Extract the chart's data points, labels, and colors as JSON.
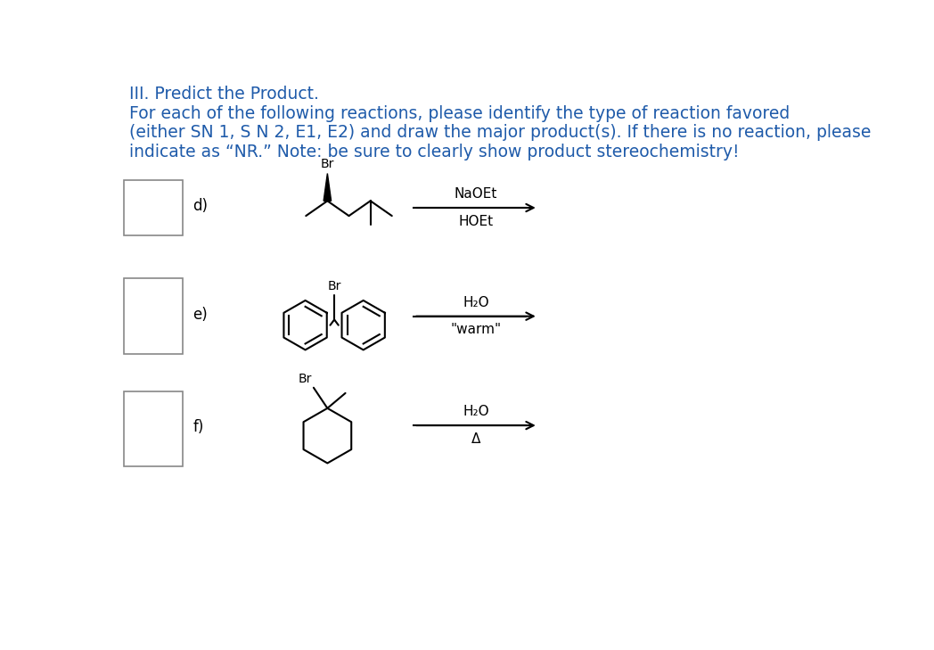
{
  "title_line1": "III. Predict the Product.",
  "title_line2": "For each of the following reactions, please identify the type of reaction favored",
  "title_line3": "(either SN 1, S N 2, E1, E2) and draw the major product(s). If there is no reaction, please",
  "title_line4": "indicate as “NR.” Note: be sure to clearly show product stereochemistry!",
  "title_color": "#1f5baa",
  "title_fontsize": 13.5,
  "background_color": "#ffffff",
  "label_d": "d)",
  "label_e": "e)",
  "label_f": "f)",
  "reagent_d_top": "NaOEt",
  "reagent_d_bot": "HOEt",
  "reagent_e_top": "H₂O",
  "reagent_e_bot": "\"warm\"",
  "reagent_f_top": "H₂O",
  "reagent_f_bot": "Δ",
  "br_label": "Br",
  "arrow_color": "#000000",
  "structure_color": "#000000"
}
